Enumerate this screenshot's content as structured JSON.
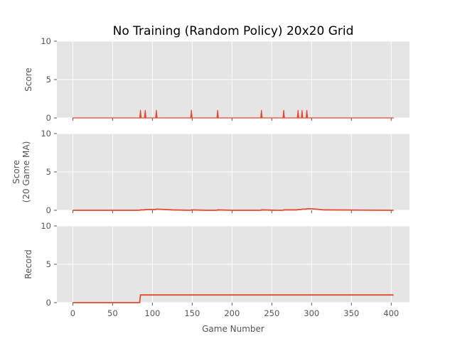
{
  "figure": {
    "title": "No Training (Random Policy) 20x20 Grid",
    "xlabel": "Game Number"
  },
  "colors": {
    "background": "#e5e5e5",
    "grid": "#ffffff",
    "line": "#e24a33",
    "tick_text": "#555555"
  },
  "chart_data": [
    {
      "type": "area",
      "ylabel": "Score",
      "xlim": [
        -20,
        423
      ],
      "ylim": [
        0,
        10
      ],
      "xticks": [
        0,
        50,
        100,
        150,
        200,
        250,
        300,
        350,
        400
      ],
      "yticks": [
        0,
        5,
        10
      ],
      "grid": true,
      "series": [
        {
          "x": [
            0,
            84,
            85,
            86,
            90,
            91,
            92,
            104,
            105,
            106,
            148,
            149,
            150,
            181,
            182,
            183,
            236,
            237,
            238,
            264,
            265,
            266,
            282,
            283,
            284,
            287,
            288,
            289,
            293,
            294,
            295,
            403
          ],
          "y": [
            0,
            0,
            1,
            0,
            0,
            1,
            0,
            0,
            1,
            0,
            0,
            1,
            0,
            0,
            1,
            0,
            0,
            1,
            0,
            0,
            1,
            0,
            0,
            1,
            0,
            0,
            1,
            0,
            0,
            1,
            0,
            0
          ]
        }
      ]
    },
    {
      "type": "line",
      "ylabel": "Score\n(20 Game MA)",
      "xlim": [
        -20,
        423
      ],
      "ylim": [
        0,
        10
      ],
      "xticks": [
        0,
        50,
        100,
        150,
        200,
        250,
        300,
        350,
        400
      ],
      "yticks": [
        0,
        5,
        10
      ],
      "grid": true,
      "series": [
        {
          "x": [
            0,
            84,
            85,
            90,
            91,
            104,
            105,
            125,
            148,
            149,
            168,
            181,
            182,
            201,
            236,
            237,
            256,
            264,
            265,
            282,
            283,
            287,
            288,
            293,
            294,
            300,
            316,
            403
          ],
          "y": [
            0,
            0,
            0.05,
            0.05,
            0.1,
            0.1,
            0.15,
            0.05,
            0,
            0.05,
            0,
            0,
            0.05,
            0,
            0,
            0.05,
            0,
            0,
            0.05,
            0.05,
            0.1,
            0.1,
            0.15,
            0.15,
            0.2,
            0.2,
            0.05,
            0
          ]
        }
      ]
    },
    {
      "type": "line",
      "ylabel": "Record",
      "xlim": [
        -20,
        423
      ],
      "ylim": [
        0,
        10
      ],
      "xticks": [
        0,
        50,
        100,
        150,
        200,
        250,
        300,
        350,
        400
      ],
      "yticks": [
        0,
        5,
        10
      ],
      "grid": true,
      "series": [
        {
          "x": [
            0,
            84,
            85,
            403
          ],
          "y": [
            0,
            0,
            1,
            1
          ]
        }
      ]
    }
  ]
}
